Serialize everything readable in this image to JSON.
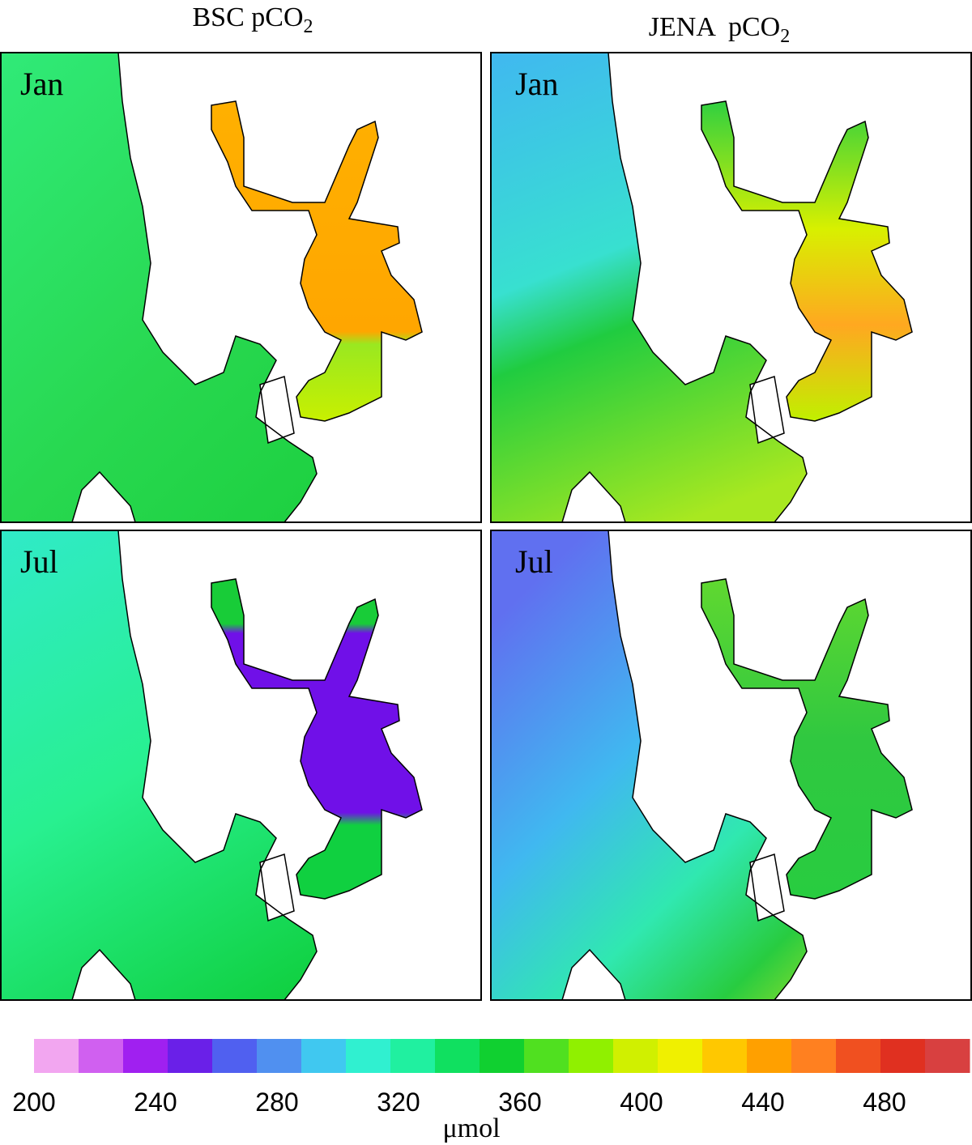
{
  "columns": [
    {
      "title": "BSC pCO",
      "subscript": "2"
    },
    {
      "title": "JENA  pCO",
      "subscript": "2"
    }
  ],
  "panels": [
    {
      "label": "Jan"
    },
    {
      "label": "Jan"
    },
    {
      "label": "Jul"
    },
    {
      "label": "Jul"
    }
  ],
  "colorbar": {
    "range": [
      200,
      508
    ],
    "ticks": [
      200,
      240,
      280,
      320,
      360,
      400,
      440,
      480
    ],
    "label": "μmol",
    "colors": [
      "#f2a6f0",
      "#d060f0",
      "#a020f0",
      "#6a20e8",
      "#5060f0",
      "#5090f0",
      "#40c8f0",
      "#30f0d0",
      "#20f0a0",
      "#10e060",
      "#10d030",
      "#50e020",
      "#90f000",
      "#d0f000",
      "#f0f000",
      "#ffc800",
      "#ffa000",
      "#ff8020",
      "#f05020",
      "#e03020",
      "#d84040"
    ]
  }
}
